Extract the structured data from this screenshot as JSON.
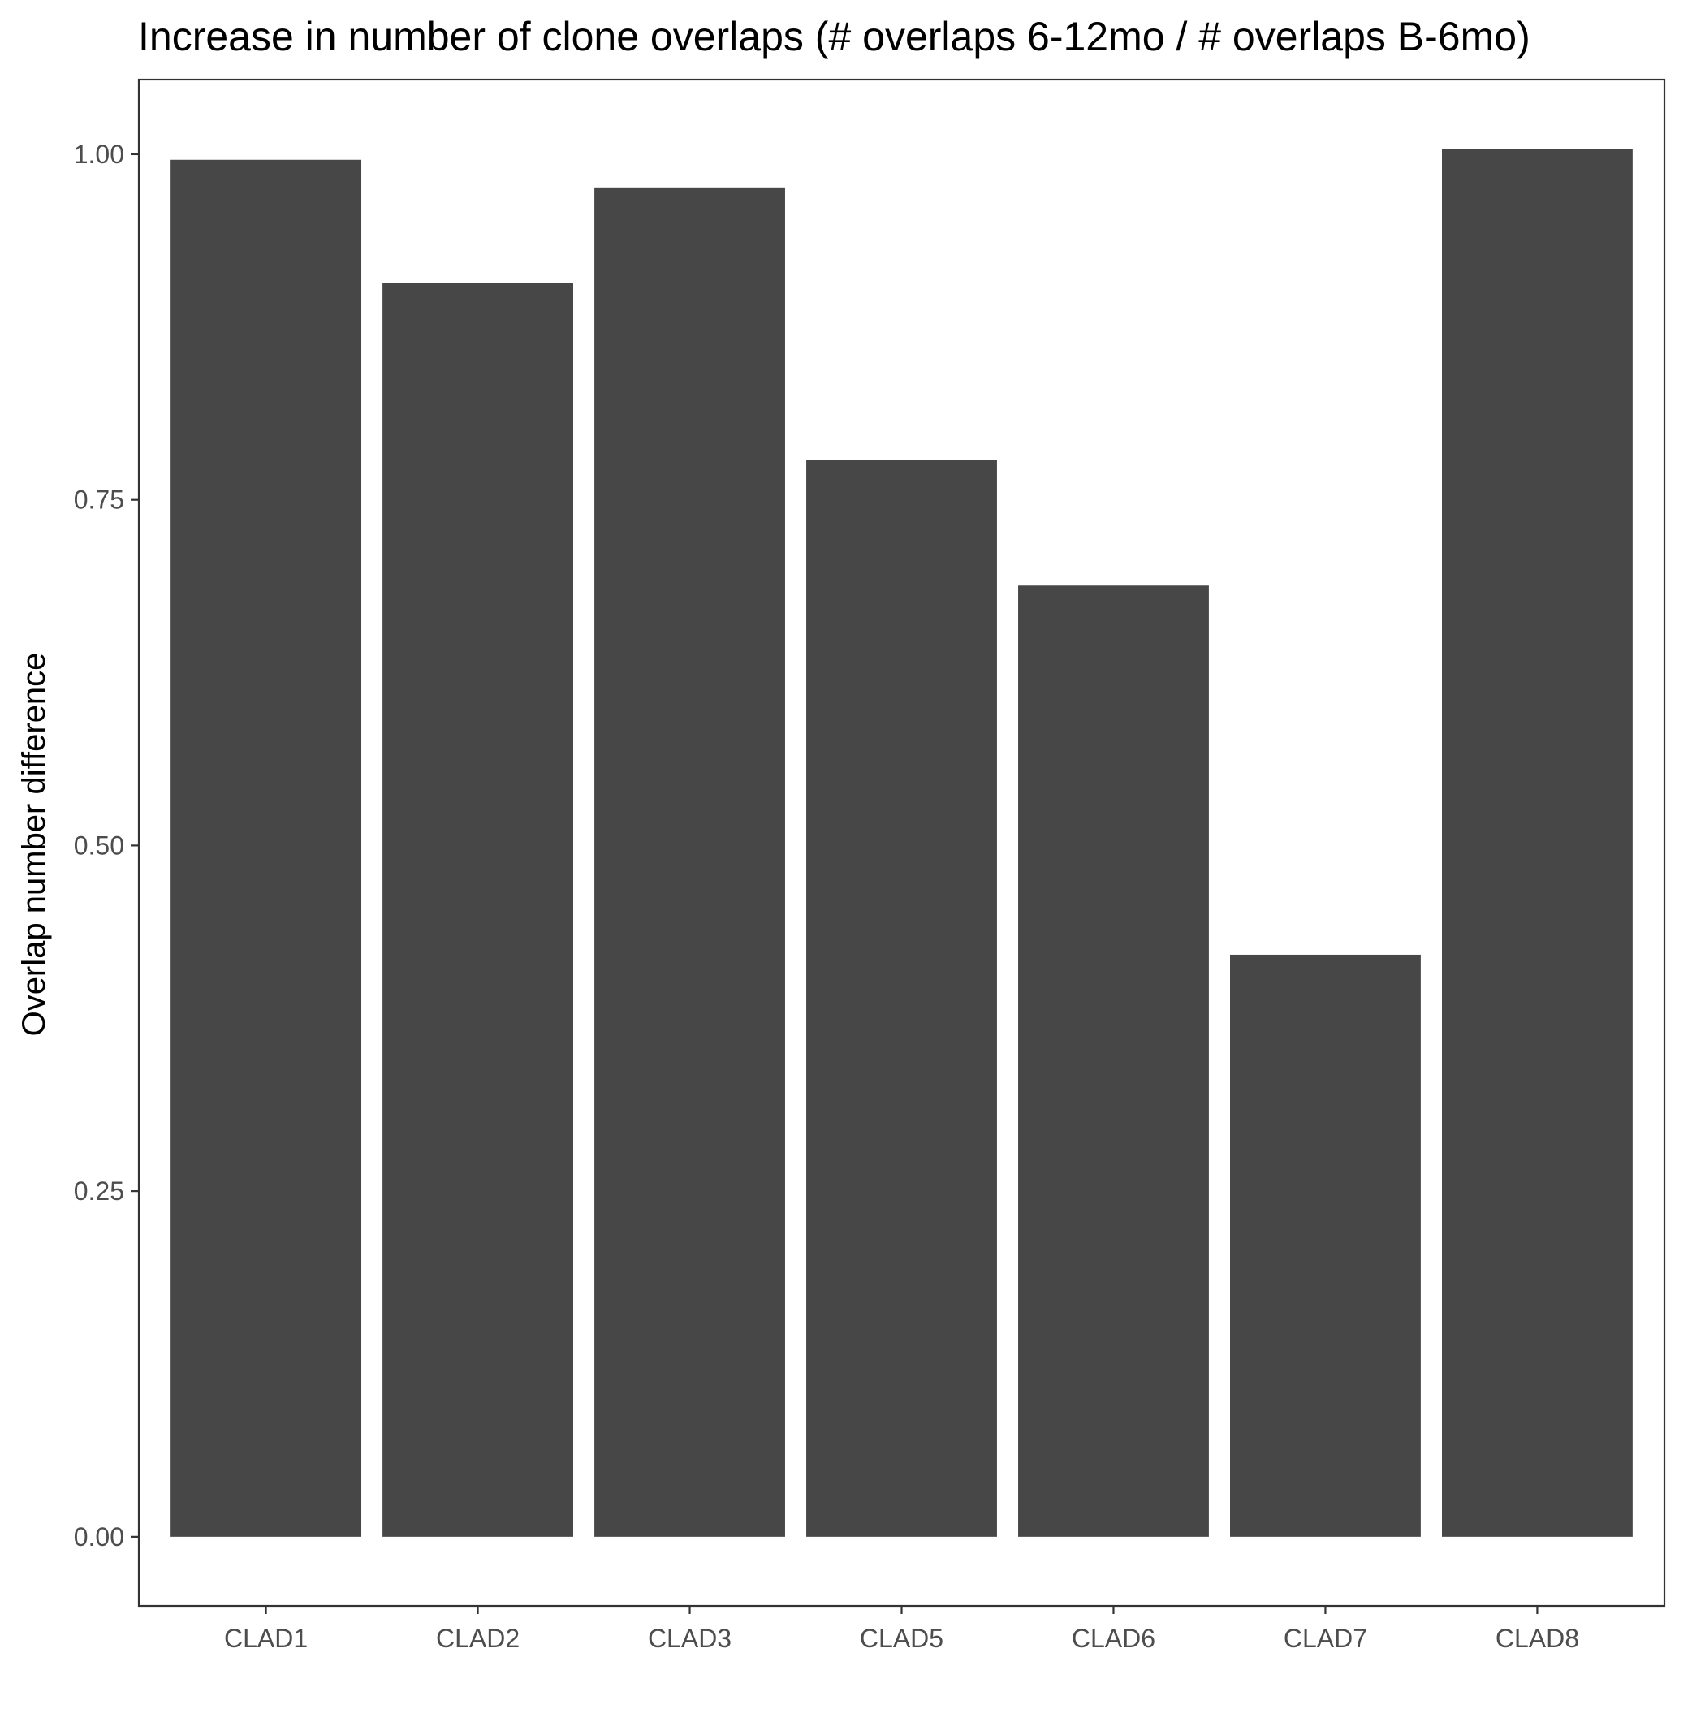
{
  "chart_data": {
    "type": "bar",
    "title": "Increase in number of clone overlaps (# overlaps 6-12mo / # overlaps B-6mo)",
    "xlabel": "",
    "ylabel": "Overlap number difference",
    "categories": [
      "CLAD1",
      "CLAD2",
      "CLAD3",
      "CLAD5",
      "CLAD6",
      "CLAD7",
      "CLAD8"
    ],
    "values": [
      0.996,
      0.907,
      0.976,
      0.779,
      0.688,
      0.421,
      1.004
    ],
    "ylim": [
      -0.05,
      1.054
    ],
    "yticks": [
      0.0,
      0.25,
      0.5,
      0.75,
      1.0
    ],
    "ytick_labels": [
      "0.00",
      "0.25",
      "0.50",
      "0.75",
      "1.00"
    ],
    "bar_color": "#474747",
    "panel_border_color": "#333333",
    "grid": false,
    "legend": "none"
  }
}
